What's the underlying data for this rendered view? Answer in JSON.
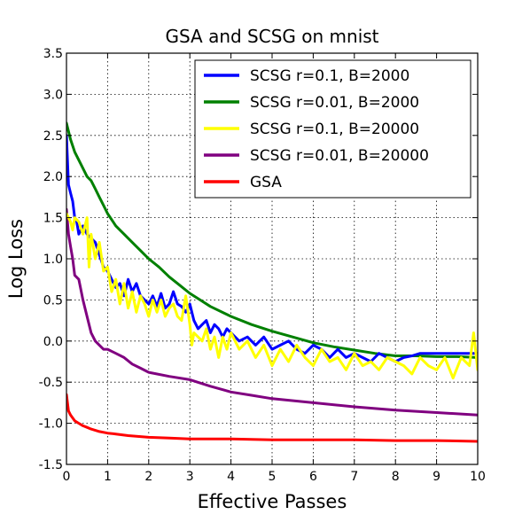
{
  "chart_data": {
    "type": "line",
    "title": "GSA and SCSG on mnist",
    "xlabel": "Effective Passes",
    "ylabel": "Log Loss",
    "xlim": [
      0,
      10
    ],
    "ylim": [
      -1.5,
      3.5
    ],
    "xticks": [
      0,
      1,
      2,
      3,
      4,
      5,
      6,
      7,
      8,
      9,
      10
    ],
    "yticks": [
      -1.5,
      -1.0,
      -0.5,
      0.0,
      0.5,
      1.0,
      1.5,
      2.0,
      2.5,
      3.0,
      3.5
    ],
    "xtick_labels": [
      "0",
      "1",
      "2",
      "3",
      "4",
      "5",
      "6",
      "7",
      "8",
      "9",
      "10"
    ],
    "ytick_labels": [
      "-1.5",
      "-1.0",
      "-0.5",
      "0.0",
      "0.5",
      "1.0",
      "1.5",
      "2.0",
      "2.5",
      "3.0",
      "3.5"
    ],
    "grid": true,
    "legend_position": "top-right",
    "series": [
      {
        "name": "SCSG r=0.1, B=2000",
        "color": "#0000ff",
        "x": [
          0,
          0.05,
          0.1,
          0.15,
          0.2,
          0.25,
          0.3,
          0.4,
          0.5,
          0.6,
          0.7,
          0.8,
          0.9,
          1.0,
          1.1,
          1.2,
          1.3,
          1.4,
          1.5,
          1.6,
          1.7,
          1.8,
          1.9,
          2.0,
          2.1,
          2.2,
          2.3,
          2.4,
          2.5,
          2.6,
          2.7,
          2.8,
          2.9,
          3.0,
          3.1,
          3.2,
          3.3,
          3.4,
          3.5,
          3.6,
          3.7,
          3.8,
          3.9,
          4.0,
          4.2,
          4.4,
          4.6,
          4.8,
          5.0,
          5.2,
          5.4,
          5.6,
          5.8,
          6.0,
          6.2,
          6.4,
          6.6,
          6.8,
          7.0,
          7.2,
          7.4,
          7.6,
          7.8,
          8.0,
          8.2,
          8.4,
          8.6,
          8.8,
          9.0,
          9.5,
          10.0
        ],
        "y": [
          2.5,
          1.9,
          1.8,
          1.7,
          1.5,
          1.45,
          1.3,
          1.4,
          1.3,
          1.25,
          1.2,
          1.05,
          0.9,
          0.85,
          0.75,
          0.65,
          0.7,
          0.55,
          0.75,
          0.6,
          0.7,
          0.55,
          0.5,
          0.45,
          0.55,
          0.42,
          0.58,
          0.4,
          0.45,
          0.6,
          0.45,
          0.42,
          0.35,
          0.45,
          0.25,
          0.15,
          0.2,
          0.25,
          0.1,
          0.2,
          0.15,
          0.05,
          0.15,
          0.1,
          0.0,
          0.05,
          -0.05,
          0.05,
          -0.1,
          -0.05,
          0.0,
          -0.1,
          -0.15,
          -0.05,
          -0.1,
          -0.2,
          -0.1,
          -0.2,
          -0.15,
          -0.2,
          -0.25,
          -0.15,
          -0.2,
          -0.25,
          -0.2,
          -0.18,
          -0.15,
          -0.15,
          -0.15,
          -0.15,
          -0.15
        ]
      },
      {
        "name": "SCSG r=0.01, B=2000",
        "color": "#008000",
        "x": [
          0,
          0.1,
          0.2,
          0.3,
          0.4,
          0.5,
          0.6,
          0.7,
          0.8,
          0.9,
          1.0,
          1.2,
          1.4,
          1.6,
          1.8,
          2.0,
          2.25,
          2.5,
          2.75,
          3.0,
          3.25,
          3.5,
          4.0,
          4.5,
          5.0,
          5.5,
          6.0,
          6.5,
          7.0,
          7.5,
          8.0,
          8.5,
          9.0,
          9.5,
          10.0
        ],
        "y": [
          2.65,
          2.45,
          2.3,
          2.2,
          2.1,
          2.0,
          1.95,
          1.85,
          1.75,
          1.65,
          1.55,
          1.4,
          1.3,
          1.2,
          1.1,
          1.0,
          0.9,
          0.78,
          0.68,
          0.58,
          0.5,
          0.42,
          0.3,
          0.2,
          0.12,
          0.05,
          -0.02,
          -0.07,
          -0.11,
          -0.15,
          -0.18,
          -0.18,
          -0.19,
          -0.19,
          -0.2
        ]
      },
      {
        "name": "SCSG r=0.1, B=20000",
        "color": "#ffff00",
        "x": [
          0,
          0.05,
          0.1,
          0.15,
          0.2,
          0.3,
          0.4,
          0.5,
          0.55,
          0.6,
          0.7,
          0.8,
          0.9,
          1.0,
          1.1,
          1.2,
          1.3,
          1.4,
          1.5,
          1.6,
          1.7,
          1.8,
          1.9,
          2.0,
          2.1,
          2.2,
          2.3,
          2.4,
          2.5,
          2.6,
          2.7,
          2.8,
          2.9,
          3.0,
          3.05,
          3.1,
          3.2,
          3.3,
          3.4,
          3.5,
          3.6,
          3.7,
          3.8,
          3.9,
          4.0,
          4.2,
          4.4,
          4.6,
          4.8,
          5.0,
          5.2,
          5.4,
          5.6,
          5.8,
          6.0,
          6.2,
          6.4,
          6.6,
          6.8,
          7.0,
          7.2,
          7.4,
          7.6,
          7.8,
          8.0,
          8.2,
          8.4,
          8.6,
          8.8,
          9.0,
          9.2,
          9.4,
          9.6,
          9.8,
          9.9,
          10.0
        ],
        "y": [
          1.55,
          1.5,
          1.45,
          1.35,
          1.5,
          1.45,
          1.3,
          1.5,
          0.9,
          1.3,
          1.0,
          1.2,
          0.85,
          0.9,
          0.6,
          0.75,
          0.45,
          0.7,
          0.4,
          0.6,
          0.35,
          0.55,
          0.45,
          0.3,
          0.5,
          0.35,
          0.5,
          0.3,
          0.4,
          0.45,
          0.3,
          0.25,
          0.55,
          0.2,
          -0.05,
          0.1,
          0.05,
          0.0,
          0.15,
          -0.1,
          0.05,
          -0.2,
          0.05,
          -0.1,
          0.1,
          -0.1,
          0.0,
          -0.2,
          -0.05,
          -0.3,
          -0.1,
          -0.25,
          -0.05,
          -0.2,
          -0.3,
          -0.1,
          -0.25,
          -0.2,
          -0.35,
          -0.15,
          -0.3,
          -0.25,
          -0.35,
          -0.2,
          -0.25,
          -0.3,
          -0.4,
          -0.2,
          -0.3,
          -0.35,
          -0.2,
          -0.45,
          -0.2,
          -0.3,
          0.1,
          -0.35
        ]
      },
      {
        "name": "SCSG r=0.01, B=20000",
        "color": "#800080",
        "x": [
          0,
          0.05,
          0.1,
          0.15,
          0.2,
          0.3,
          0.4,
          0.5,
          0.6,
          0.7,
          0.8,
          0.9,
          1.0,
          1.2,
          1.4,
          1.6,
          1.8,
          2.0,
          2.5,
          3.0,
          3.5,
          4.0,
          4.5,
          5.0,
          6.0,
          7.0,
          8.0,
          9.0,
          10.0
        ],
        "y": [
          1.6,
          1.3,
          1.15,
          1.0,
          0.8,
          0.75,
          0.5,
          0.3,
          0.1,
          0.0,
          -0.05,
          -0.1,
          -0.1,
          -0.15,
          -0.2,
          -0.28,
          -0.33,
          -0.38,
          -0.43,
          -0.47,
          -0.55,
          -0.62,
          -0.66,
          -0.7,
          -0.75,
          -0.8,
          -0.84,
          -0.87,
          -0.9
        ]
      },
      {
        "name": "GSA",
        "color": "#ff0000",
        "x": [
          0,
          0.05,
          0.1,
          0.2,
          0.3,
          0.4,
          0.5,
          0.6,
          0.8,
          1.0,
          1.2,
          1.5,
          2.0,
          2.5,
          3.0,
          3.5,
          4.0,
          5.0,
          6.0,
          7.0,
          8.0,
          9.0,
          10.0
        ],
        "y": [
          -0.65,
          -0.85,
          -0.9,
          -0.97,
          -1.0,
          -1.03,
          -1.05,
          -1.07,
          -1.1,
          -1.12,
          -1.13,
          -1.15,
          -1.17,
          -1.18,
          -1.19,
          -1.19,
          -1.19,
          -1.2,
          -1.2,
          -1.2,
          -1.21,
          -1.21,
          -1.22
        ]
      }
    ]
  }
}
